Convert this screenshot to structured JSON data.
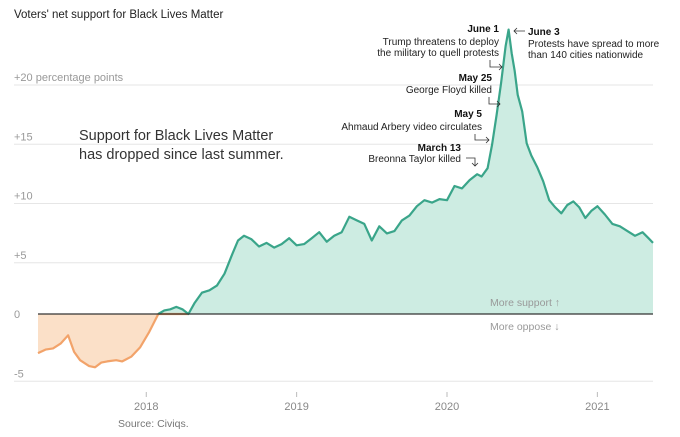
{
  "title": "Voters' net support for Black Lives Matter",
  "source": "Source: Civiqs.",
  "colors": {
    "positive_fill": "#cdece2",
    "positive_line": "#3aa58a",
    "negative_fill": "#fbe0c8",
    "negative_line": "#f2a36a",
    "gridline": "#e6e6e6",
    "zero_line": "#333333"
  },
  "chart_data": {
    "type": "area",
    "title": "Voters' net support for Black Lives Matter",
    "xlabel": "",
    "ylabel": "",
    "xlim": [
      2017.28,
      2021.37
    ],
    "ylim": [
      -6.5,
      25
    ],
    "y_ticks": [
      {
        "value": 20,
        "label": "+20 percentage points"
      },
      {
        "value": 15,
        "label": "+15"
      },
      {
        "value": 10,
        "label": "+10"
      },
      {
        "value": 5,
        "label": "+5"
      },
      {
        "value": 0,
        "label": "0"
      },
      {
        "value": -5,
        "label": "-5"
      }
    ],
    "x_ticks": [
      {
        "value": 2018,
        "label": "2018"
      },
      {
        "value": 2019,
        "label": "2019"
      },
      {
        "value": 2020,
        "label": "2020"
      },
      {
        "value": 2021,
        "label": "2021"
      }
    ],
    "series": [
      {
        "name": "Net support",
        "x": [
          2017.28,
          2017.33,
          2017.38,
          2017.43,
          2017.48,
          2017.52,
          2017.56,
          2017.62,
          2017.66,
          2017.7,
          2017.74,
          2017.8,
          2017.84,
          2017.9,
          2017.96,
          2018.02,
          2018.08,
          2018.12,
          2018.16,
          2018.2,
          2018.24,
          2018.28,
          2018.32,
          2018.37,
          2018.42,
          2018.47,
          2018.52,
          2018.57,
          2018.61,
          2018.65,
          2018.7,
          2018.75,
          2018.8,
          2018.85,
          2018.9,
          2018.95,
          2019.0,
          2019.05,
          2019.1,
          2019.15,
          2019.2,
          2019.25,
          2019.3,
          2019.35,
          2019.4,
          2019.45,
          2019.5,
          2019.55,
          2019.6,
          2019.65,
          2019.7,
          2019.75,
          2019.8,
          2019.85,
          2019.9,
          2019.95,
          2020.0,
          2020.05,
          2020.1,
          2020.15,
          2020.2,
          2020.23,
          2020.27,
          2020.3,
          2020.33,
          2020.36,
          2020.39,
          2020.41,
          2020.43,
          2020.45,
          2020.47,
          2020.5,
          2020.53,
          2020.56,
          2020.6,
          2020.64,
          2020.68,
          2020.72,
          2020.76,
          2020.8,
          2020.84,
          2020.88,
          2020.92,
          2020.96,
          2021.0,
          2021.05,
          2021.1,
          2021.15,
          2021.2,
          2021.25,
          2021.3,
          2021.34,
          2021.37
        ],
        "values": [
          -3.3,
          -3.0,
          -2.9,
          -2.5,
          -1.8,
          -3.2,
          -3.9,
          -4.4,
          -4.5,
          -4.1,
          -4.0,
          -3.9,
          -4.0,
          -3.6,
          -2.8,
          -1.5,
          0.0,
          0.3,
          0.4,
          0.6,
          0.4,
          0.0,
          0.9,
          1.8,
          2.0,
          2.4,
          3.4,
          5.0,
          6.2,
          6.6,
          6.3,
          5.7,
          6.0,
          5.6,
          5.9,
          6.4,
          5.8,
          5.9,
          6.4,
          6.9,
          6.1,
          6.6,
          6.9,
          8.2,
          7.9,
          7.6,
          6.2,
          7.4,
          6.8,
          7.0,
          7.9,
          8.3,
          9.1,
          9.6,
          9.4,
          9.7,
          9.6,
          10.8,
          10.6,
          11.3,
          11.8,
          11.6,
          12.3,
          14.3,
          16.8,
          19.5,
          22.6,
          24.0,
          22.0,
          20.5,
          18.5,
          17.1,
          14.4,
          13.4,
          12.4,
          11.2,
          9.6,
          9.0,
          8.5,
          9.2,
          9.5,
          9.0,
          8.1,
          8.7,
          9.1,
          8.4,
          7.6,
          7.4,
          7.0,
          6.6,
          6.9,
          6.4,
          6.0
        ]
      }
    ],
    "annotations": [
      {
        "date": "March 13",
        "text": "Breonna Taylor killed"
      },
      {
        "date": "May 5",
        "text": "Ahmaud Arbery video circulates"
      },
      {
        "date": "May 25",
        "text": "George Floyd killed"
      },
      {
        "date": "June 1",
        "text_lines": [
          "Trump threatens to deploy",
          "the military to quell protests"
        ]
      },
      {
        "date": "June 3",
        "text_lines": [
          "Protests have spread to more",
          "than 140 cities nationwide"
        ]
      }
    ],
    "notes": {
      "headline_lines": [
        "Support for Black Lives Matter",
        "has dropped since last summer."
      ],
      "more_support": "More support ↑",
      "more_oppose": "More oppose ↓"
    }
  }
}
